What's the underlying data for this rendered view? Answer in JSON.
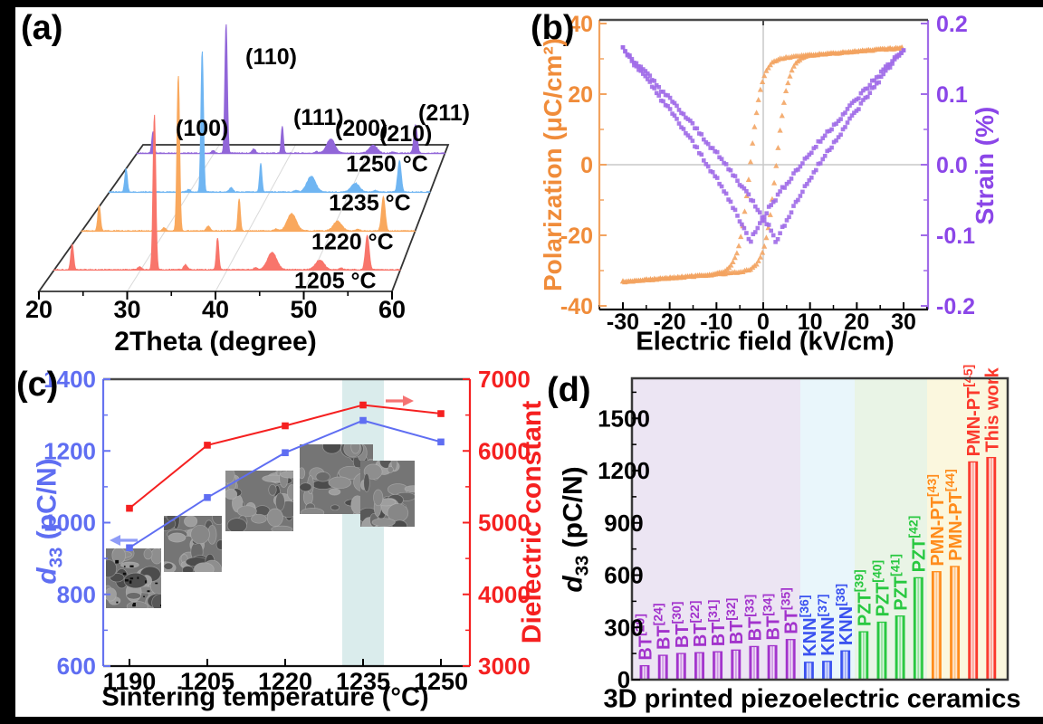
{
  "chart_data": [
    {
      "id": "a",
      "type": "line",
      "panel_label": "(a)",
      "xlabel": "2Theta (degree)",
      "xlim": [
        20,
        60
      ],
      "x_ticks": [
        20,
        30,
        40,
        50,
        60
      ],
      "peak_labels": [
        "(100)",
        "(110)",
        "(111)",
        "(200)",
        "(210)",
        "(211)"
      ],
      "peak_positions": [
        22.1,
        31.6,
        38.9,
        45.2,
        50.7,
        56.2
      ],
      "peak_rel_intensity": [
        0.165,
        1.0,
        0.205,
        0.11,
        0.062,
        0.22
      ],
      "peak_widths": [
        0.22,
        0.22,
        0.2,
        0.75,
        0.7,
        0.3
      ],
      "minor_peaks": [
        [
          29.9,
          0.018
        ],
        [
          35.2,
          0.032
        ],
        [
          43.3,
          0.012
        ],
        [
          53.2,
          0.01
        ]
      ],
      "series": [
        {
          "name": "1205 °C",
          "color": "#f8756b",
          "peak_height": 172
        },
        {
          "name": "1220 °C",
          "color": "#f9a85d",
          "peak_height": 172
        },
        {
          "name": "1235 °C",
          "color": "#6fb5f2",
          "peak_height": 157
        },
        {
          "name": "1250 °C",
          "color": "#9166d8",
          "peak_height": 143
        }
      ]
    },
    {
      "id": "b",
      "type": "scatter",
      "panel_label": "(b)",
      "xlabel": "Electric field (kV/cm)",
      "ylabel_left": "Polarization (μC/cm²)",
      "ylabel_right": "Strain (%)",
      "xlim": [
        -35,
        35
      ],
      "x_ticks": [
        -30,
        -20,
        -10,
        0,
        10,
        20,
        30
      ],
      "ylim_left": [
        -40,
        40
      ],
      "y_ticks_left": [
        "40",
        "20",
        "0",
        "-20",
        "-40"
      ],
      "ylim_right": [
        -0.2,
        0.2
      ],
      "y_ticks_right": [
        "0.2",
        "0.1",
        "0.0",
        "-0.1",
        "-0.2"
      ],
      "polarization_loop": {
        "color": "#f2a360",
        "marker": "triangle",
        "saturation_uC_cm2": 33,
        "remanent_uC_cm2": 26,
        "coercive_field_kV_cm": 2.8,
        "field_max_kV_cm": 30
      },
      "strain_loop": {
        "color": "#a06be8",
        "marker": "square",
        "max_percent": 0.17,
        "min_percent": -0.11,
        "min_at_field_kV_cm": 2.9,
        "field_max_kV_cm": 30
      }
    },
    {
      "id": "c",
      "type": "line",
      "panel_label": "(c)",
      "xlabel": "Sintering temperature (°C)",
      "ylabel_left": {
        "italic": "d",
        "sub": "33",
        "rest": " (pC/N)"
      },
      "ylabel_right": "Dielectric constant",
      "categories": [
        1190,
        1205,
        1220,
        1235,
        1250
      ],
      "series": [
        {
          "name": "d33 (pC/N)",
          "axis": "left",
          "color": "#5f6ef2",
          "values": [
            930,
            1070,
            1195,
            1285,
            1225
          ]
        },
        {
          "name": "Dielectric constant",
          "axis": "right",
          "color": "#f52020",
          "values": [
            5200,
            6080,
            6350,
            6640,
            6520
          ]
        }
      ],
      "ylim_left": [
        600,
        1400
      ],
      "y_ticks_left": [
        "1400",
        "1200",
        "1000",
        "800",
        "600"
      ],
      "ylim_right": [
        3000,
        7000
      ],
      "y_ticks_right": [
        "7000",
        "6000",
        "5000",
        "4000",
        "3000"
      ],
      "highlight_band_temperature": 1235,
      "sem_inset_count": 5,
      "band_color": "#daecec"
    },
    {
      "id": "d",
      "type": "bar",
      "panel_label": "(d)",
      "xlabel": "3D printed piezoelectric ceramics",
      "ylabel": {
        "italic": "d",
        "sub": "33",
        "rest": " (pC/N)"
      },
      "ylim": [
        0,
        1730
      ],
      "y_ticks": [
        0,
        300,
        600,
        900,
        1200,
        1500
      ],
      "groups": [
        {
          "material": "BT",
          "color": "#a233cc",
          "band": "#ece5f3",
          "bars": [
            {
              "label": "BT",
              "ref": "29",
              "value": 80
            },
            {
              "label": "BT",
              "ref": "24",
              "value": 140
            },
            {
              "label": "BT",
              "ref": "30",
              "value": 150
            },
            {
              "label": "BT",
              "ref": "22",
              "value": 155
            },
            {
              "label": "BT",
              "ref": "31",
              "value": 160
            },
            {
              "label": "BT",
              "ref": "32",
              "value": 170
            },
            {
              "label": "BT",
              "ref": "33",
              "value": 190
            },
            {
              "label": "BT",
              "ref": "34",
              "value": 195
            },
            {
              "label": "BT",
              "ref": "35",
              "value": 230
            }
          ]
        },
        {
          "material": "KNN",
          "color": "#3a52f0",
          "band": "#e9f6fb",
          "bars": [
            {
              "label": "KNN",
              "ref": "36",
              "value": 100
            },
            {
              "label": "KNN",
              "ref": "37",
              "value": 105
            },
            {
              "label": "KNN",
              "ref": "38",
              "value": 165
            }
          ]
        },
        {
          "material": "PZT",
          "color": "#28c840",
          "band": "#e9f4e6",
          "bars": [
            {
              "label": "PZT",
              "ref": "39",
              "value": 275
            },
            {
              "label": "PZT",
              "ref": "40",
              "value": 330
            },
            {
              "label": "PZT",
              "ref": "41",
              "value": 365
            },
            {
              "label": "PZT",
              "ref": "42",
              "value": 585
            }
          ]
        },
        {
          "material": "PMN-PT",
          "color": "#ff8c1c",
          "band": "#fbf7de",
          "bars": [
            {
              "label": "PMN-PT",
              "ref": "43",
              "value": 620
            },
            {
              "label": "PMN-PT",
              "ref": "44",
              "value": 650
            }
          ]
        },
        {
          "material": "PMN-PT / This work",
          "color": "#fb392c",
          "band": "#fbf7de",
          "bars": [
            {
              "label": "PMN-PT",
              "ref": "45",
              "value": 1250
            },
            {
              "label": "This work",
              "ref": "",
              "value": 1275
            }
          ]
        }
      ]
    }
  ]
}
